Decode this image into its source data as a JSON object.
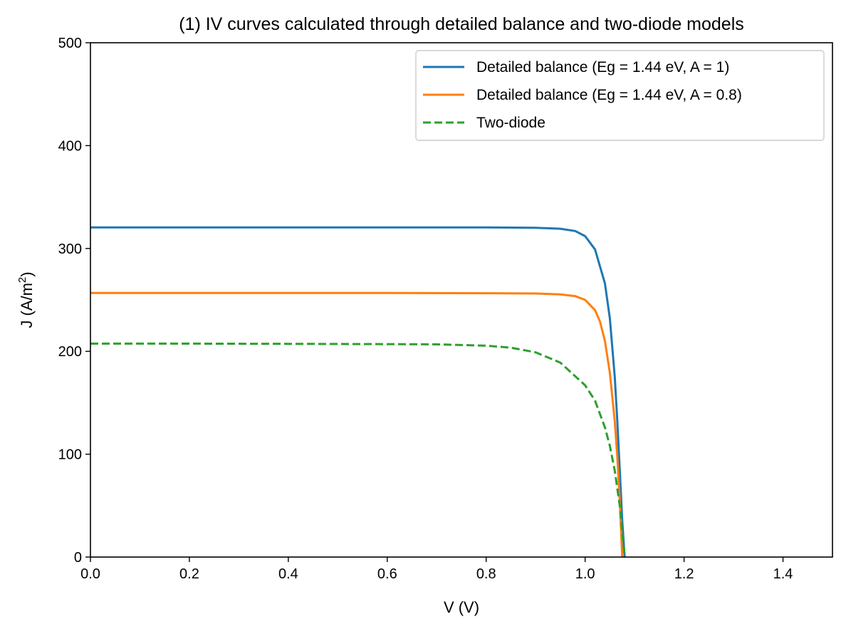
{
  "chart_data": {
    "type": "line",
    "title": "(1) IV curves calculated through detailed balance and two-diode models",
    "xlabel": "V (V)",
    "ylabel_main": "J (A/m",
    "ylabel_sup": "2",
    "ylabel_close": ")",
    "xlim": [
      0.0,
      1.5
    ],
    "ylim": [
      0,
      500
    ],
    "xticks": [
      0.0,
      0.2,
      0.4,
      0.6,
      0.8,
      1.0,
      1.2,
      1.4
    ],
    "xtick_labels": [
      "0.0",
      "0.2",
      "0.4",
      "0.6",
      "0.8",
      "1.0",
      "1.2",
      "1.4"
    ],
    "yticks": [
      0,
      100,
      200,
      300,
      400,
      500
    ],
    "ytick_labels": [
      "0",
      "100",
      "200",
      "300",
      "400",
      "500"
    ],
    "grid": false,
    "legend_position": "top-right",
    "series": [
      {
        "name": "Detailed balance (Eg = 1.44 eV, A = 1)",
        "color": "#1f77b4",
        "dash": "solid",
        "x": [
          0.0,
          0.2,
          0.4,
          0.6,
          0.8,
          0.9,
          0.95,
          0.98,
          1.0,
          1.02,
          1.04,
          1.05,
          1.06,
          1.065,
          1.07,
          1.075,
          1.08
        ],
        "y": [
          320.5,
          320.5,
          320.5,
          320.5,
          320.4,
          320.1,
          319.2,
          317.0,
          312.0,
          299.0,
          266.0,
          232.0,
          175.0,
          133.0,
          85.0,
          35.0,
          0
        ]
      },
      {
        "name": "Detailed balance (Eg = 1.44 eV, A = 0.8)",
        "color": "#ff7f0e",
        "dash": "solid",
        "x": [
          0.0,
          0.2,
          0.4,
          0.6,
          0.8,
          0.9,
          0.95,
          0.98,
          1.0,
          1.02,
          1.03,
          1.04,
          1.05,
          1.06,
          1.065,
          1.07,
          1.075
        ],
        "y": [
          256.7,
          256.7,
          256.7,
          256.7,
          256.5,
          256.2,
          255.4,
          253.7,
          250.0,
          240.0,
          229.0,
          210.0,
          179.0,
          132.0,
          98.0,
          55.0,
          0
        ]
      },
      {
        "name": "Two-diode",
        "color": "#2ca02c",
        "dash": "dashed",
        "x": [
          0.0,
          0.2,
          0.4,
          0.6,
          0.7,
          0.8,
          0.85,
          0.9,
          0.95,
          1.0,
          1.02,
          1.04,
          1.05,
          1.06,
          1.07,
          1.08
        ],
        "y": [
          207.5,
          207.5,
          207.3,
          207.0,
          206.8,
          205.5,
          203.5,
          199.0,
          189.0,
          167.0,
          152.0,
          126.0,
          108.0,
          84.0,
          50.0,
          0
        ]
      }
    ]
  }
}
